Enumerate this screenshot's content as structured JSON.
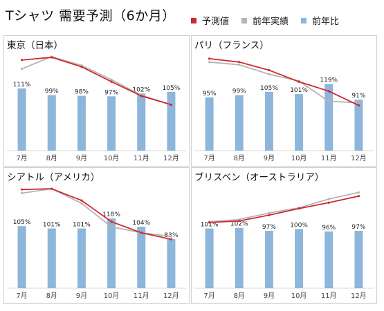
{
  "header": {
    "title": "Tシャツ 需要予測（6か月）"
  },
  "legend": [
    {
      "label": "予測値",
      "color": "#d0282c"
    },
    {
      "label": "前年実績",
      "color": "#b4b4b4"
    },
    {
      "label": "前年比",
      "color": "#8db6da"
    }
  ],
  "colors": {
    "forecast": "#d0282c",
    "actual": "#b4b4b4",
    "bar": "#8db6da"
  },
  "chart_data": [
    {
      "type": "bar",
      "title": "東京（日本）",
      "categories": [
        "7月",
        "8月",
        "9月",
        "10月",
        "11月",
        "12月"
      ],
      "series": [
        {
          "name": "前年比",
          "values": [
            111,
            99,
            98,
            97,
            102,
            105
          ],
          "labels": [
            "111%",
            "99%",
            "98%",
            "97%",
            "102%",
            "105%"
          ]
        },
        {
          "name": "予測値",
          "type": "line",
          "values": [
            0.93,
            0.97,
            0.83,
            0.61,
            0.4,
            0.27
          ]
        },
        {
          "name": "前年実績",
          "type": "line",
          "values": [
            0.8,
            0.98,
            0.85,
            0.64,
            0.41,
            0.27
          ]
        }
      ],
      "bar_scale_max": 180
    },
    {
      "type": "bar",
      "title": "パリ（フランス）",
      "categories": [
        "7月",
        "8月",
        "9月",
        "10月",
        "11月",
        "12月"
      ],
      "series": [
        {
          "name": "前年比",
          "values": [
            95,
            99,
            105,
            101,
            119,
            91
          ],
          "labels": [
            "95%",
            "99%",
            "105%",
            "101%",
            "119%",
            "91%"
          ]
        },
        {
          "name": "予測値",
          "type": "line",
          "values": [
            0.95,
            0.9,
            0.78,
            0.61,
            0.47,
            0.26
          ]
        },
        {
          "name": "前年実績",
          "type": "line",
          "values": [
            0.9,
            0.86,
            0.72,
            0.62,
            0.32,
            0.3
          ]
        }
      ],
      "bar_scale_max": 180
    },
    {
      "type": "bar",
      "title": "シアトル（アメリカ）",
      "categories": [
        "7月",
        "8月",
        "9月",
        "10月",
        "11月",
        "12月"
      ],
      "series": [
        {
          "name": "前年比",
          "values": [
            105,
            101,
            101,
            118,
            104,
            83
          ],
          "labels": [
            "105%",
            "101%",
            "101%",
            "118%",
            "104%",
            "83%"
          ]
        },
        {
          "name": "予測値",
          "type": "line",
          "values": [
            0.97,
            0.98,
            0.82,
            0.53,
            0.38,
            0.29
          ]
        },
        {
          "name": "前年実績",
          "type": "line",
          "values": [
            0.92,
            0.98,
            0.78,
            0.46,
            0.38,
            0.33
          ]
        }
      ],
      "bar_scale_max": 180
    },
    {
      "type": "bar",
      "title": "ブリスベン（オーストラリア）",
      "categories": [
        "7月",
        "8月",
        "9月",
        "10月",
        "11月",
        "12月"
      ],
      "series": [
        {
          "name": "前年比",
          "values": [
            101,
            102,
            97,
            100,
            96,
            97
          ],
          "labels": [
            "101%",
            "102%",
            "97%",
            "100%",
            "96%",
            "97%"
          ]
        },
        {
          "name": "予測値",
          "type": "line",
          "values": [
            0.52,
            0.54,
            0.62,
            0.71,
            0.79,
            0.88
          ]
        },
        {
          "name": "前年実績",
          "type": "line",
          "values": [
            0.53,
            0.56,
            0.65,
            0.72,
            0.84,
            0.93
          ]
        }
      ],
      "bar_scale_max": 180
    }
  ]
}
